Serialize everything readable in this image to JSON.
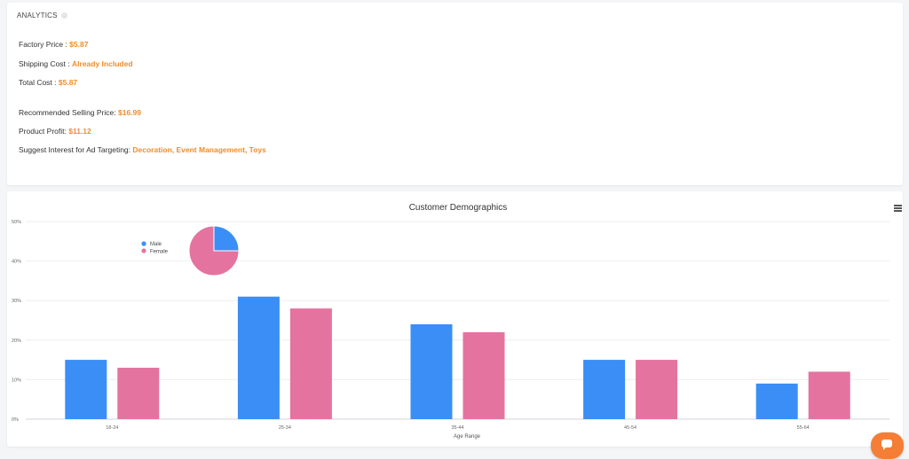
{
  "analytics": {
    "title": "ANALYTICS",
    "info_icon": "info-icon",
    "rows": [
      {
        "label": "Factory Price : ",
        "value": "$5.87"
      },
      {
        "label": "Shipping Cost : ",
        "value": "Already Included"
      },
      {
        "label": "Total Cost : ",
        "value": "$5.87"
      },
      {
        "label": "Recommended Selling Price: ",
        "value": "$16.99"
      },
      {
        "label": "Product Profit: ",
        "value": "$11.12"
      },
      {
        "label": "Suggest Interest for Ad Targeting: ",
        "value": "Decoration, Event Management, Toys"
      }
    ]
  },
  "colors": {
    "accent": "#f28c28",
    "male": "#3a8ef6",
    "female": "#e4739f"
  },
  "chart_data": {
    "type": "bar",
    "title": "Customer Demographics",
    "xlabel": "Age Range",
    "ylabel": "",
    "categories": [
      "18-24",
      "25-34",
      "35-44",
      "45-54",
      "55-64"
    ],
    "y_ticks": [
      "0%",
      "10%",
      "20%",
      "30%",
      "40%",
      "50%"
    ],
    "ylim": [
      0,
      50
    ],
    "grid": true,
    "series": [
      {
        "name": "Male",
        "values": [
          15,
          31,
          24,
          15,
          9
        ]
      },
      {
        "name": "Female",
        "values": [
          13,
          28,
          22,
          15,
          12
        ]
      }
    ],
    "inset_pie": {
      "type": "pie",
      "slices": [
        {
          "name": "Male",
          "value": 25
        },
        {
          "name": "Female",
          "value": 75
        }
      ]
    },
    "legend_placement": "top-left"
  },
  "toolbar": {
    "menu_icon": "hamburger-menu-icon",
    "chat_icon": "chat-icon"
  }
}
